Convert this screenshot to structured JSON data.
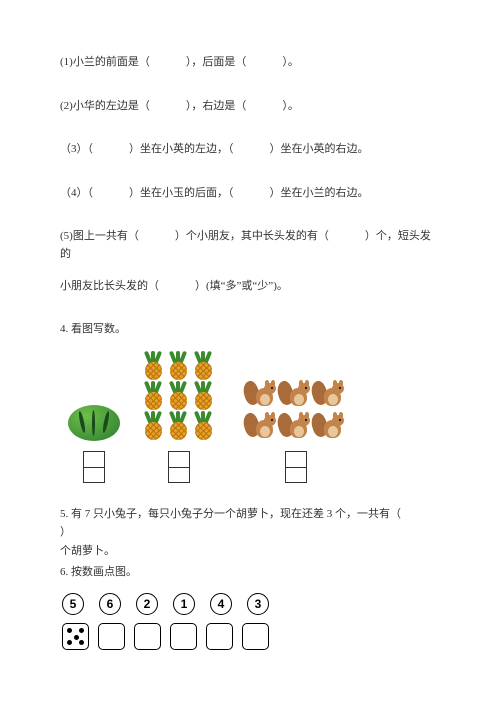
{
  "q1": {
    "prefix": "(1)小兰的前面是（",
    "mid": "），后面是（",
    "suffix": "）。"
  },
  "q2": {
    "prefix": "(2)小华的左边是（",
    "mid": "），右边是（",
    "suffix": "）。"
  },
  "q3": {
    "prefix": "（3）（",
    "mid1": "）坐在小英的左边，（",
    "mid2": "）坐在小英的右边。"
  },
  "q3b": {
    "prefix": "（4）（",
    "mid1": "）坐在小玉的后面，（",
    "mid2": "）坐在小兰的右边。"
  },
  "q5line1": {
    "p1": "(5)图上一共有（",
    "p2": "）个小朋友，其中长头发的有（",
    "p3": "）个，短头发的"
  },
  "q5line2": {
    "p1": "小朋友比长头发的（",
    "p2": "）(填“多”或“少”)。"
  },
  "q4title": "4. 看图写数。",
  "q5text": {
    "a": "5. 有 7 只小兔子，每只小兔子分一个胡萝卜，现在还差 3 个，一共有（",
    "b": "）",
    "c": "个胡萝卜。"
  },
  "q6title": "6. 按数画点图。",
  "q6numbers": [
    "5",
    "6",
    "2",
    "1",
    "4",
    "3"
  ],
  "colors": {
    "text": "#333333",
    "border": "#000000",
    "watermelon_light": "#6fbf4a",
    "watermelon_dark": "#2a7a2e",
    "pineapple_body": "#e8a023",
    "pineapple_leaf": "#3a8a2e",
    "squirrel_body": "#c2844a",
    "squirrel_tail": "#a96b3a",
    "squirrel_belly": "#e8c89a"
  },
  "counts": {
    "watermelon": 1,
    "pineapples": 9,
    "squirrels": 6,
    "empty_dice": 5
  }
}
